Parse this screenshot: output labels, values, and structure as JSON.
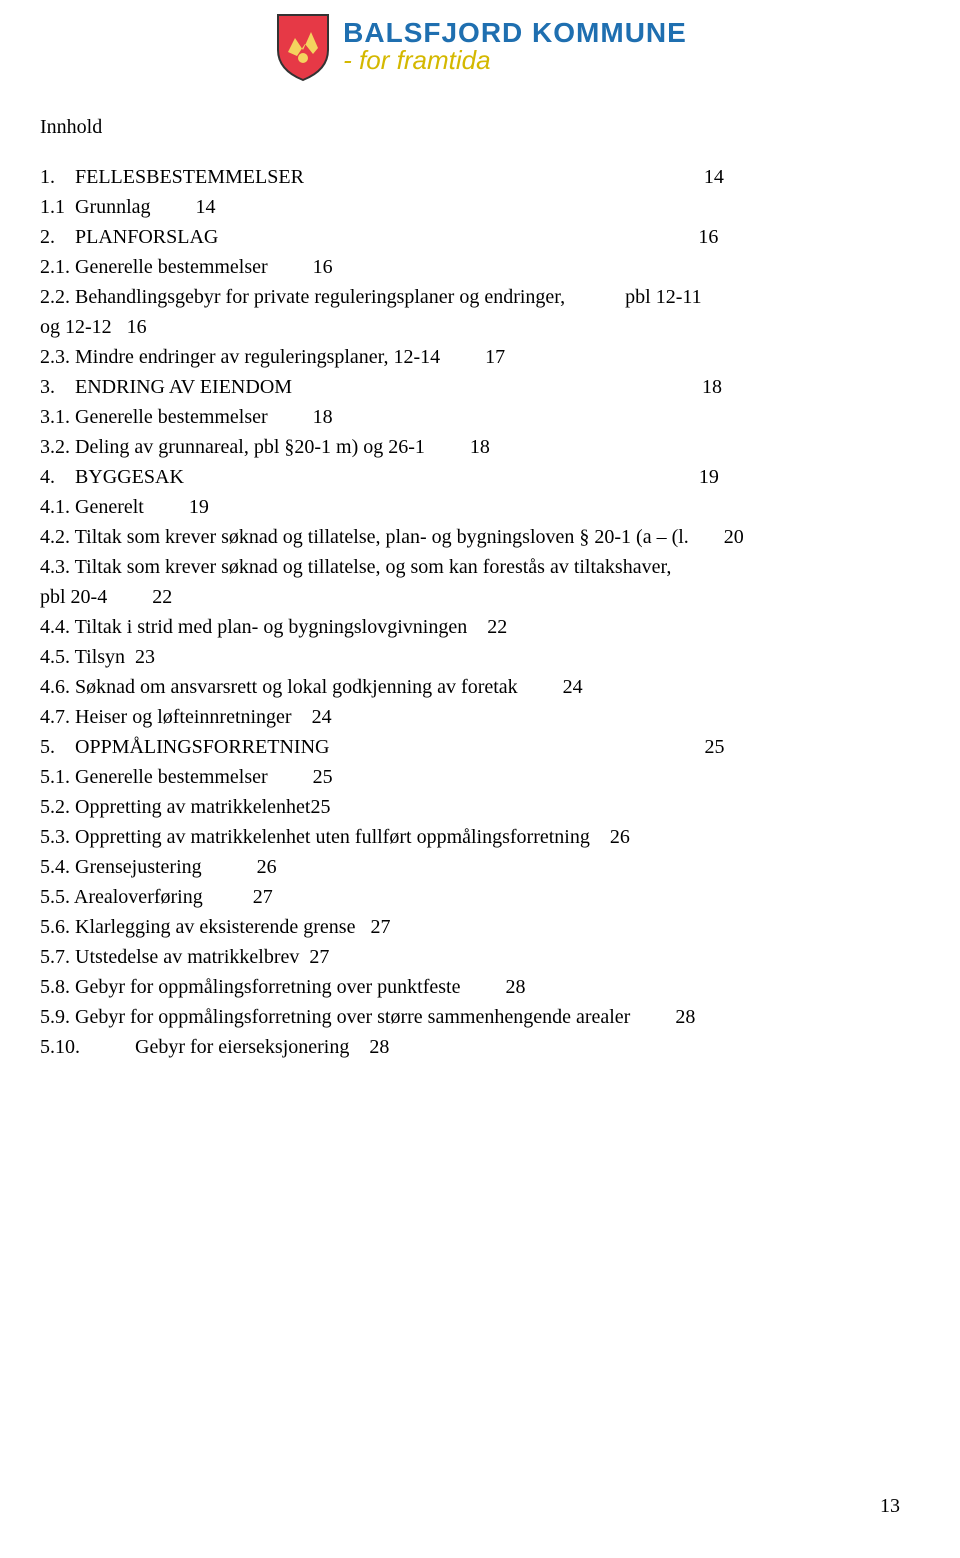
{
  "brand": {
    "name": "BALSFJORD KOMMUNE",
    "tagline": "- for framtida",
    "name_color": "#1f6fb0",
    "tagline_color": "#d4b800",
    "shield_bg": "#e63946",
    "shield_border": "#333333",
    "shield_figure": "#f4d35e"
  },
  "title": "Innhold",
  "toc": [
    "1.    FELLESBESTEMMELSER                                                                                14",
    "1.1  Grunnlag         14",
    "2.    PLANFORSLAG                                                                                                16",
    "2.1. Generelle bestemmelser         16",
    "2.2. Behandlingsgebyr for private reguleringsplaner og endringer,            pbl 12-11",
    "og 12-12   16",
    "2.3. Mindre endringer av reguleringsplaner, 12-14         17",
    "3.    ENDRING AV EIENDOM                                                                                  18",
    "3.1. Generelle bestemmelser         18",
    "3.2. Deling av grunnareal, pbl §20-1 m) og 26-1         18",
    "4.    BYGGESAK                                                                                                       19",
    "4.1. Generelt         19",
    "4.2. Tiltak som krever søknad og tillatelse, plan- og bygningsloven § 20-1 (a – (l.       20",
    "4.3. Tiltak som krever søknad og tillatelse, og som kan forestås av tiltakshaver,",
    "pbl 20-4         22",
    "4.4. Tiltak i strid med plan- og bygningslovgivningen    22",
    "4.5. Tilsyn  23",
    "4.6. Søknad om ansvarsrett og lokal godkjenning av foretak         24",
    "4.7. Heiser og løfteinnretninger    24",
    "5.    OPPMÅLINGSFORRETNING                                                                           25",
    "5.1. Generelle bestemmelser         25",
    "5.2. Oppretting av matrikkelenhet25",
    "5.3. Oppretting av matrikkelenhet uten fullført oppmålingsforretning    26",
    "5.4. Grensejustering           26",
    "5.5. Arealoverføring          27",
    "5.6. Klarlegging av eksisterende grense   27",
    "5.7. Utstedelse av matrikkelbrev  27",
    "5.8. Gebyr for oppmålingsforretning over punktfeste         28",
    "5.9. Gebyr for oppmålingsforretning over større sammenhengende arealer         28",
    "5.10.           Gebyr for eierseksjonering    28"
  ],
  "page_number": "13"
}
